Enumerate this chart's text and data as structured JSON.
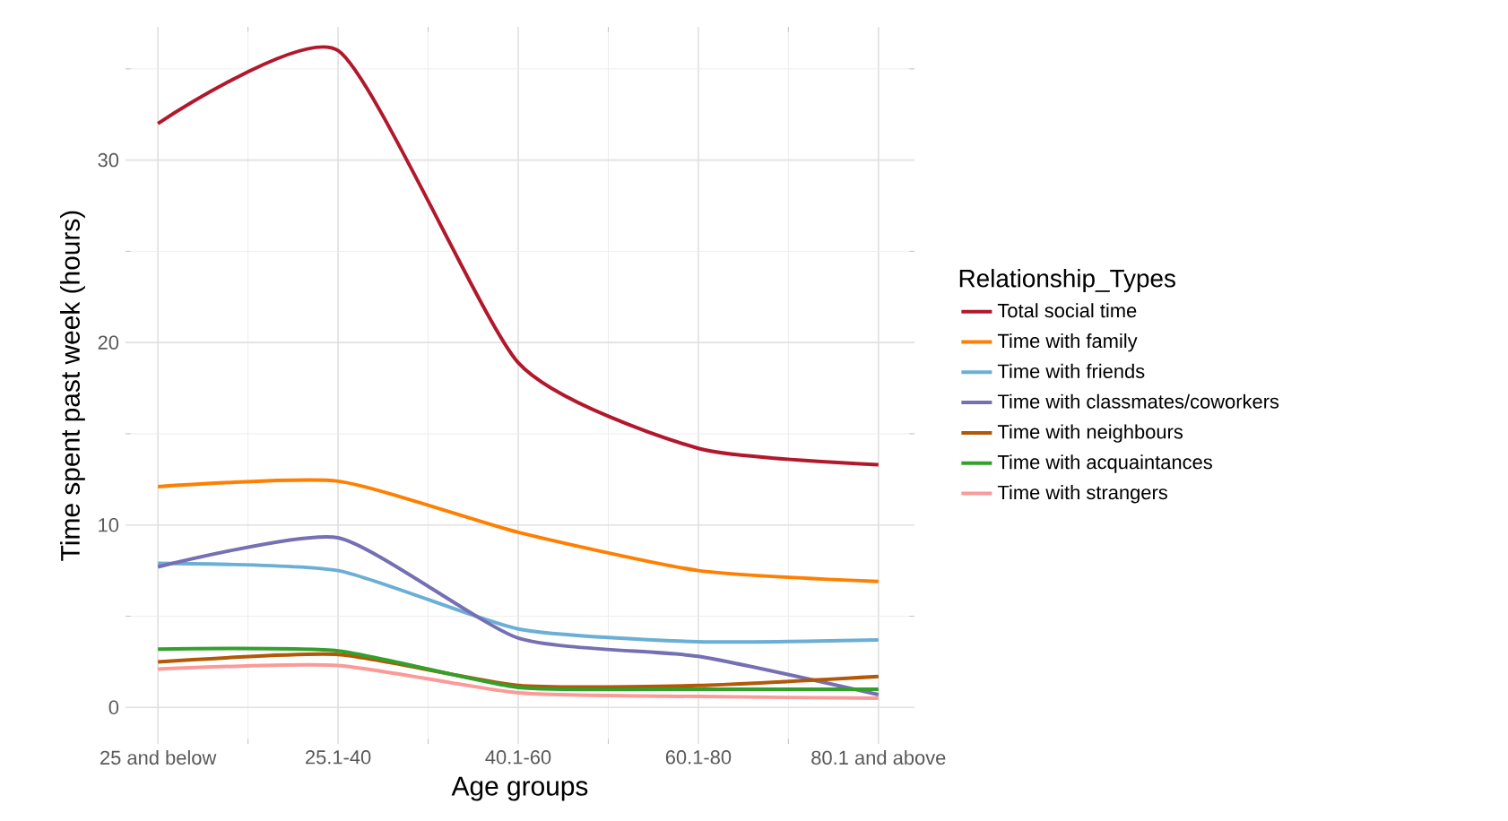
{
  "chart_data": {
    "type": "line",
    "xlabel": "Age groups",
    "ylabel": "Time spent past week (hours)",
    "legend_title": "Relationship_Types",
    "categories": [
      "25 and below",
      "25.1-40",
      "40.1-60",
      "60.1-80",
      "80.1 and above"
    ],
    "ylim": [
      -2,
      37.3
    ],
    "yticks": [
      0,
      10,
      20,
      30
    ],
    "grid": true,
    "legend": "right",
    "marker": "none",
    "line_style": "solid",
    "series": [
      {
        "name": "Total social time",
        "color": "#b2182b",
        "values": [
          32.0,
          36.0,
          18.9,
          14.2,
          13.3
        ]
      },
      {
        "name": "Time with family",
        "color": "#ff7f00",
        "values": [
          12.1,
          12.4,
          9.6,
          7.5,
          6.9
        ]
      },
      {
        "name": "Time with friends",
        "color": "#6baed6",
        "values": [
          7.9,
          7.5,
          4.3,
          3.6,
          3.7
        ]
      },
      {
        "name": "Time with classmates/coworkers",
        "color": "#7570b3",
        "values": [
          7.7,
          9.3,
          3.8,
          2.8,
          0.7
        ]
      },
      {
        "name": "Time with neighbours",
        "color": "#b35806",
        "values": [
          2.5,
          2.9,
          1.2,
          1.2,
          1.7
        ]
      },
      {
        "name": "Time with acquaintances",
        "color": "#33a02c",
        "values": [
          3.2,
          3.1,
          1.1,
          1.0,
          1.0
        ]
      },
      {
        "name": "Time with strangers",
        "color": "#fb9a99",
        "values": [
          2.1,
          2.3,
          0.8,
          0.6,
          0.5
        ]
      }
    ]
  }
}
